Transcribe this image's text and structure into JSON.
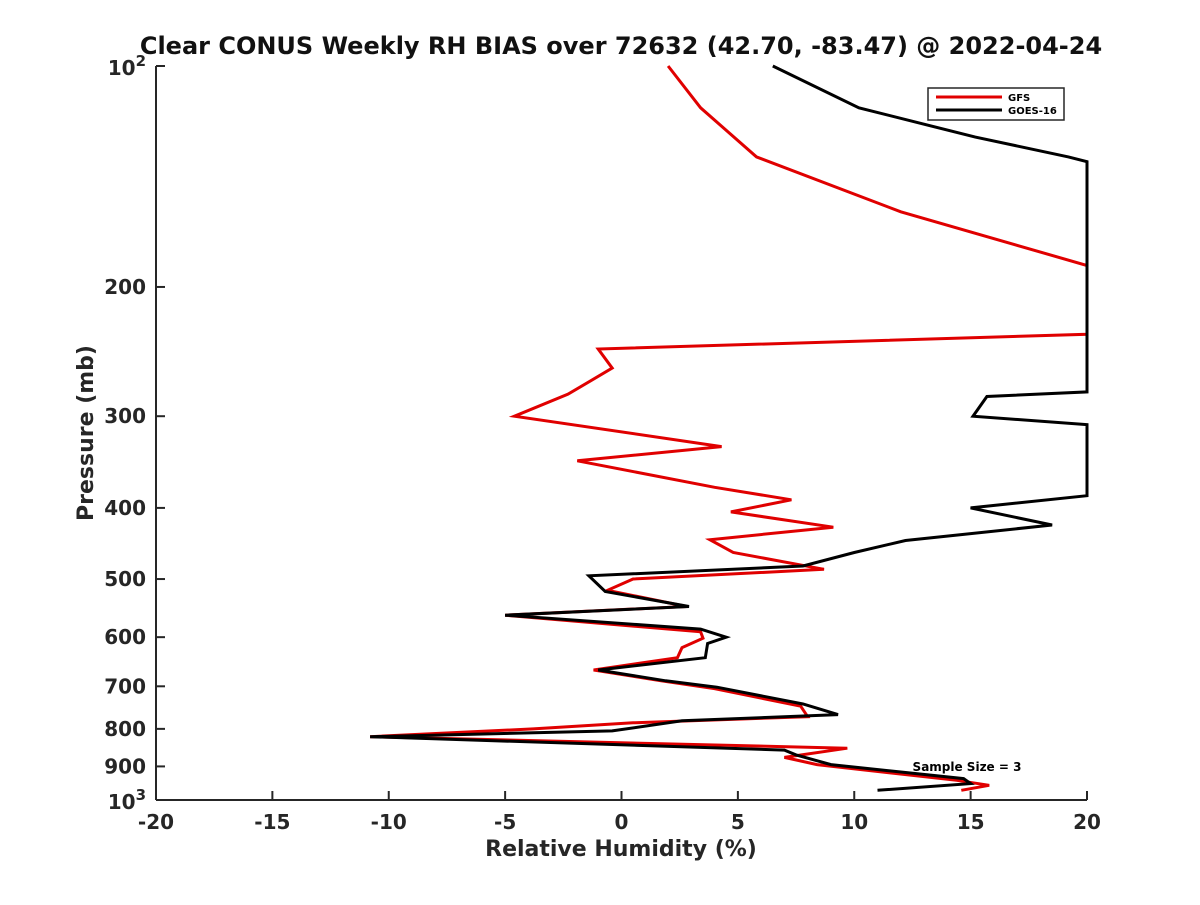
{
  "chart_data": {
    "type": "line",
    "title": "Clear CONUS Weekly RH BIAS over 72632 (42.70, -83.47) @ 2022-04-24",
    "xlabel": "Relative Humidity (%)",
    "ylabel": "Pressure (mb)",
    "xlim": [
      -20,
      20
    ],
    "ylim": [
      100,
      1000
    ],
    "y_scale": "log",
    "y_reversed": true,
    "grid": false,
    "legend_position": "top-right",
    "annotation": "Sample Size = 3",
    "x_ticks": [
      {
        "value": -20,
        "label": "-20"
      },
      {
        "value": -15,
        "label": "-15"
      },
      {
        "value": -10,
        "label": "-10"
      },
      {
        "value": -5,
        "label": "-5"
      },
      {
        "value": 0,
        "label": "0"
      },
      {
        "value": 5,
        "label": "5"
      },
      {
        "value": 10,
        "label": "10"
      },
      {
        "value": 15,
        "label": "15"
      },
      {
        "value": 20,
        "label": "20"
      }
    ],
    "y_ticks": [
      {
        "value": 100,
        "base": "10",
        "exp": "2"
      },
      {
        "value": 200,
        "label": "200"
      },
      {
        "value": 300,
        "label": "300"
      },
      {
        "value": 400,
        "label": "400"
      },
      {
        "value": 500,
        "label": "500"
      },
      {
        "value": 600,
        "label": "600"
      },
      {
        "value": 700,
        "label": "700"
      },
      {
        "value": 800,
        "label": "800"
      },
      {
        "value": 900,
        "label": "900"
      },
      {
        "value": 1000,
        "base": "10",
        "exp": "3"
      }
    ],
    "series": [
      {
        "name": "GFS",
        "color": "#e00000",
        "points": [
          [
            2.0,
            100
          ],
          [
            3.4,
            114
          ],
          [
            5.8,
            133
          ],
          [
            12.0,
            158
          ],
          [
            20,
            187
          ],
          [
            20,
            232
          ],
          [
            -1.0,
            243
          ],
          [
            -0.4,
            258
          ],
          [
            -2.3,
            280
          ],
          [
            -4.6,
            300
          ],
          [
            4.3,
            330
          ],
          [
            -1.9,
            345
          ],
          [
            4.0,
            375
          ],
          [
            7.3,
            390
          ],
          [
            4.7,
            405
          ],
          [
            9.1,
            425
          ],
          [
            3.8,
            442
          ],
          [
            4.8,
            460
          ],
          [
            8.7,
            485
          ],
          [
            0.5,
            500
          ],
          [
            -0.6,
            518
          ],
          [
            2.8,
            545
          ],
          [
            -5.0,
            560
          ],
          [
            3.4,
            590
          ],
          [
            3.5,
            602
          ],
          [
            2.6,
            620
          ],
          [
            2.4,
            640
          ],
          [
            -1.2,
            665
          ],
          [
            1.7,
            688
          ],
          [
            4.0,
            705
          ],
          [
            7.7,
            745
          ],
          [
            8.0,
            770
          ],
          [
            0.5,
            785
          ],
          [
            -3.8,
            800
          ],
          [
            -10.8,
            820
          ],
          [
            9.7,
            850
          ],
          [
            7.0,
            875
          ],
          [
            8.4,
            895
          ],
          [
            14.4,
            940
          ],
          [
            15.8,
            955
          ],
          [
            14.6,
            970
          ]
        ]
      },
      {
        "name": "GOES-16",
        "color": "#000000",
        "points": [
          [
            6.5,
            100
          ],
          [
            10.2,
            114
          ],
          [
            15.2,
            125
          ],
          [
            19.2,
            133
          ],
          [
            20,
            135
          ],
          [
            20,
            278
          ],
          [
            15.7,
            282
          ],
          [
            15.1,
            300
          ],
          [
            20,
            308
          ],
          [
            20,
            385
          ],
          [
            15.0,
            400
          ],
          [
            18.5,
            422
          ],
          [
            12.2,
            443
          ],
          [
            10.0,
            460
          ],
          [
            7.8,
            480
          ],
          [
            -1.4,
            495
          ],
          [
            -0.7,
            520
          ],
          [
            2.9,
            545
          ],
          [
            -5.0,
            560
          ],
          [
            3.4,
            585
          ],
          [
            4.5,
            600
          ],
          [
            3.7,
            612
          ],
          [
            3.6,
            640
          ],
          [
            -1.0,
            665
          ],
          [
            1.9,
            688
          ],
          [
            4.1,
            702
          ],
          [
            7.8,
            740
          ],
          [
            9.3,
            765
          ],
          [
            2.6,
            780
          ],
          [
            -0.4,
            805
          ],
          [
            -10.8,
            820
          ],
          [
            7.0,
            855
          ],
          [
            7.5,
            868
          ],
          [
            9.0,
            895
          ],
          [
            14.7,
            935
          ],
          [
            15.0,
            950
          ],
          [
            11.0,
            970
          ]
        ]
      }
    ]
  }
}
